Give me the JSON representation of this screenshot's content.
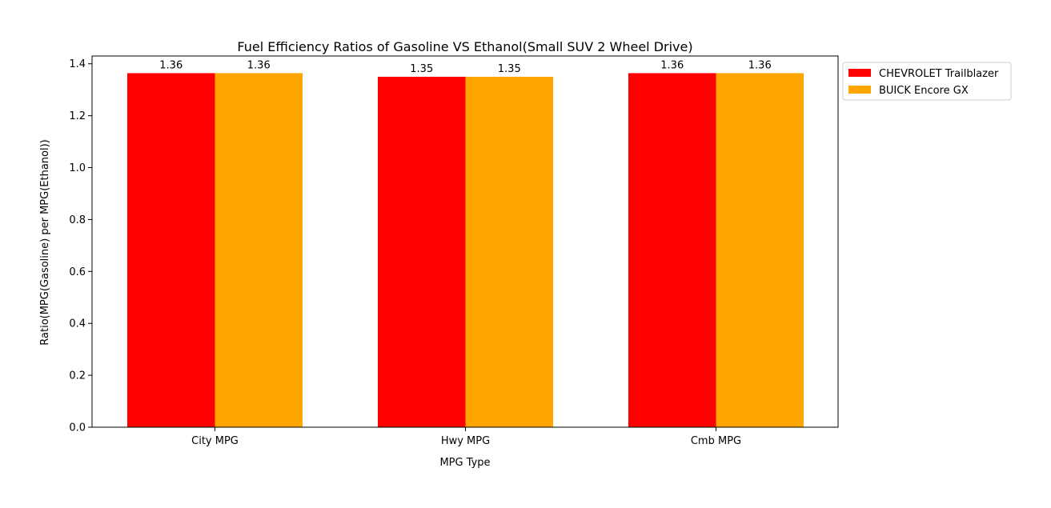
{
  "chart_data": {
    "type": "bar",
    "title": "Fuel Efficiency Ratios of Gasoline VS Ethanol(Small SUV 2 Wheel Drive)",
    "xlabel": "MPG Type",
    "ylabel": "Ratio(MPG(Gasoline) per MPG(Ethanol))",
    "categories": [
      "City MPG",
      "Hwy MPG",
      "Cmb MPG"
    ],
    "series": [
      {
        "name": "CHEVROLET Trailblazer",
        "color": "#ff0000",
        "values": [
          1.364,
          1.35,
          1.364
        ],
        "labels": [
          "1.36",
          "1.35",
          "1.36"
        ]
      },
      {
        "name": "BUICK Encore GX",
        "color": "#ffa500",
        "values": [
          1.364,
          1.35,
          1.364
        ],
        "labels": [
          "1.36",
          "1.35",
          "1.36"
        ]
      }
    ],
    "ylim": [
      0,
      1.43
    ],
    "yticks": [
      0.0,
      0.2,
      0.4,
      0.6,
      0.8,
      1.0,
      1.2,
      1.4
    ],
    "ytick_labels": [
      "0.0",
      "0.2",
      "0.4",
      "0.6",
      "0.8",
      "1.0",
      "1.2",
      "1.4"
    ],
    "grid": false,
    "legend_position": "outside-top-right"
  }
}
